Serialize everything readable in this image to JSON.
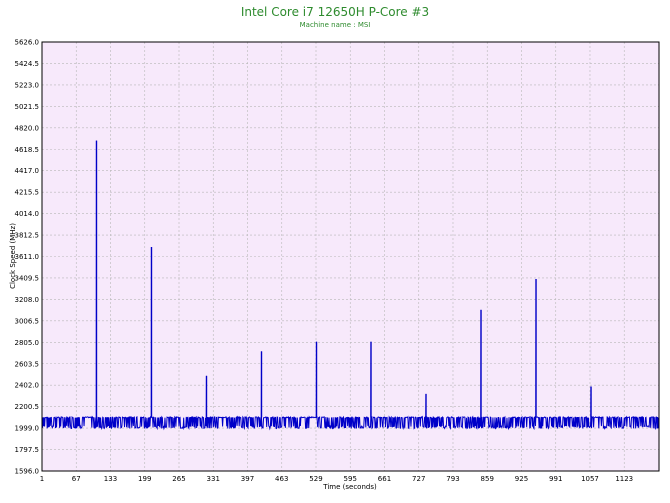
{
  "chart_data": {
    "type": "line",
    "title": "Intel Core i7 12650H P-Core #3",
    "subtitle": "Machine name : MSI",
    "xlabel": "Time (seconds)",
    "ylabel": "Clock Speed (MHz)",
    "xlim": [
      1,
      1190
    ],
    "ylim": [
      1596.0,
      5626.0
    ],
    "x_ticks": [
      "1",
      "67",
      "133",
      "199",
      "265",
      "331",
      "397",
      "463",
      "529",
      "595",
      "661",
      "727",
      "793",
      "859",
      "925",
      "991",
      "1057",
      "1123"
    ],
    "y_ticks": [
      "5626.0",
      "5424.5",
      "5223.0",
      "5021.5",
      "4820.0",
      "4618.5",
      "4417.0",
      "4215.5",
      "4014.0",
      "3812.5",
      "3611.0",
      "3409.5",
      "3208.0",
      "3006.5",
      "2805.0",
      "2603.5",
      "2402.0",
      "2200.5",
      "1999.0",
      "1797.5",
      "1596.0"
    ],
    "grid": true,
    "colors": {
      "plot_bg": "#f7e9fb",
      "grid": "#b8b8b8",
      "line": "#0000c8",
      "title": "#2e8b2e"
    },
    "series": [
      {
        "baseline": 2100,
        "noise_low": 1995,
        "spikes": [
          {
            "x": 106,
            "y": 4700
          },
          {
            "x": 212,
            "y": 3700
          },
          {
            "x": 318,
            "y": 2490
          },
          {
            "x": 424,
            "y": 2720
          },
          {
            "x": 530,
            "y": 2810
          },
          {
            "x": 635,
            "y": 2810
          },
          {
            "x": 741,
            "y": 2320
          },
          {
            "x": 847,
            "y": 3110
          },
          {
            "x": 953,
            "y": 3400
          },
          {
            "x": 1059,
            "y": 2390
          }
        ]
      }
    ]
  }
}
